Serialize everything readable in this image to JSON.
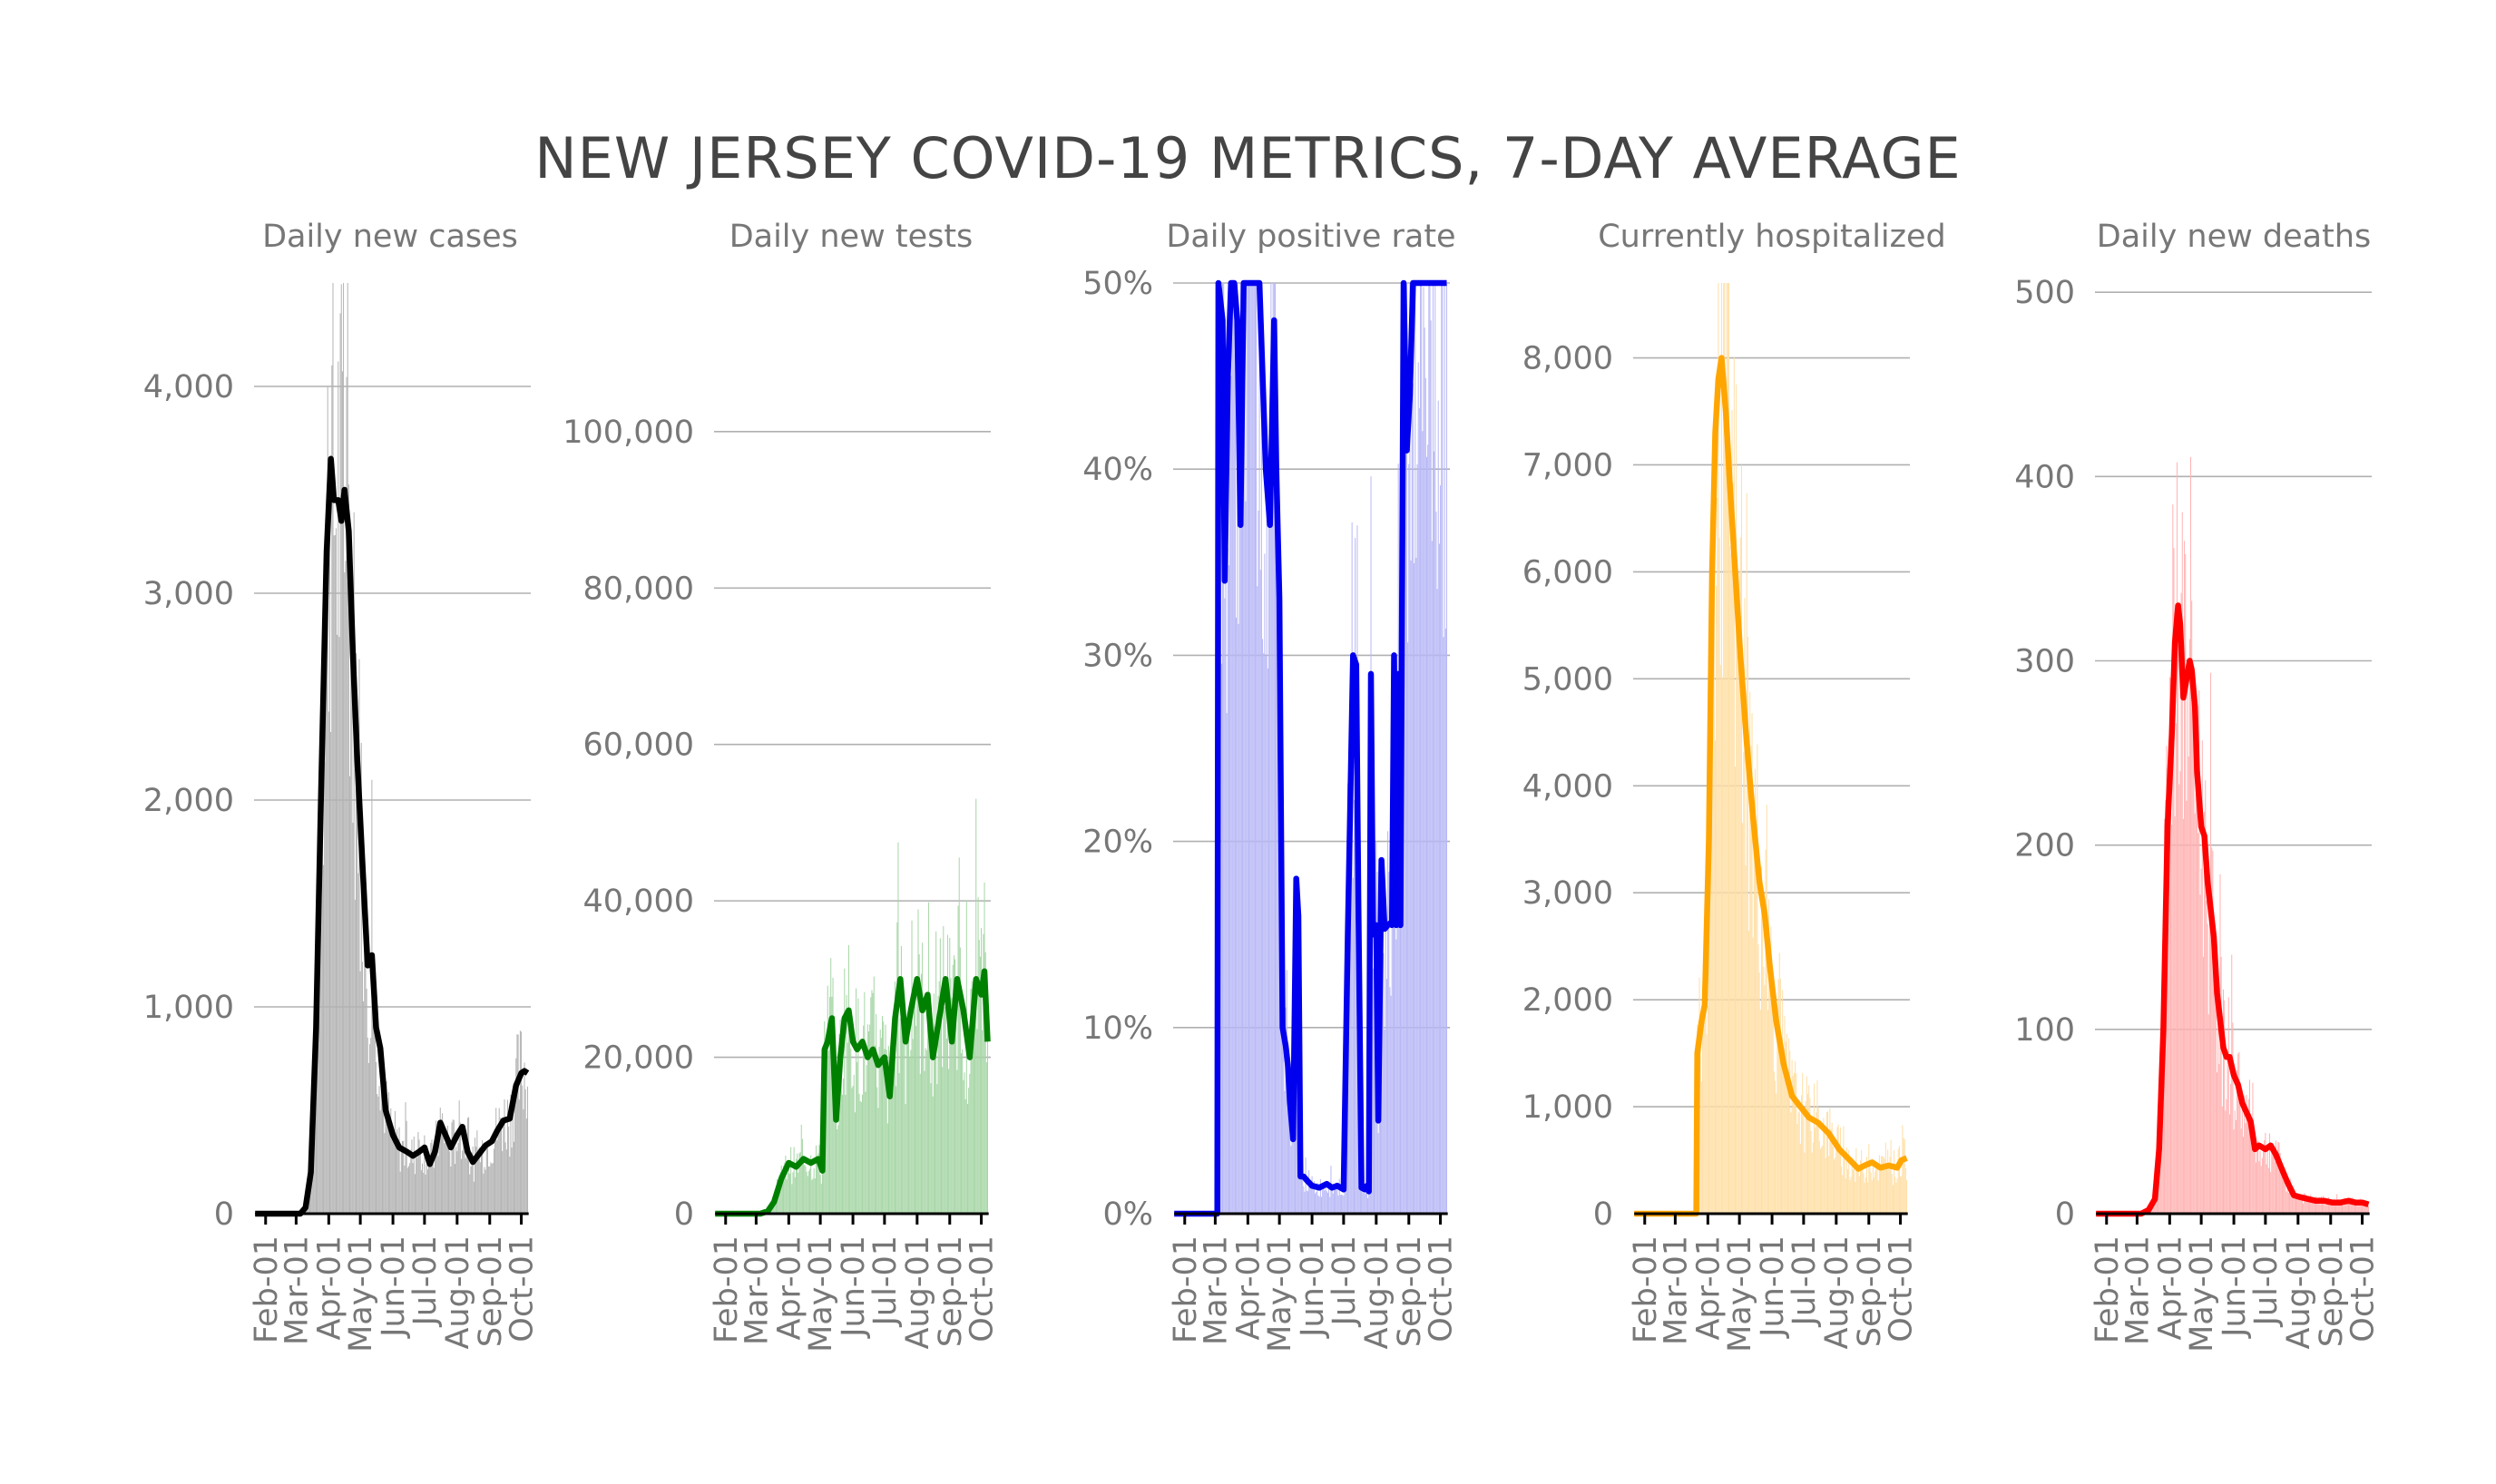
{
  "title": "NEW JERSEY COVID-19 METRICS, 7-DAY AVERAGE",
  "x_tick_labels": [
    "Feb-01",
    "Mar-01",
    "Apr-01",
    "May-01",
    "Jun-01",
    "Jul-01",
    "Aug-01",
    "Sep-01",
    "Oct-01"
  ],
  "chart_data": [
    {
      "type": "bar",
      "title": "Daily new cases",
      "color": "#000000",
      "bar_color": "#b3b3b3",
      "ylim": [
        0,
        4500
      ],
      "yticks": [
        0,
        1000,
        2000,
        3000,
        4000
      ],
      "ytick_labels": [
        "0",
        "1,000",
        "2,000",
        "3,000",
        "4,000"
      ],
      "xlim": [
        "2020-01-21",
        "2020-10-10"
      ],
      "series": [
        {
          "type": "line",
          "x": [
            "2020-01-22",
            "2020-02-15",
            "2020-03-05",
            "2020-03-10",
            "2020-03-15",
            "2020-03-20",
            "2020-03-25",
            "2020-03-30",
            "2020-04-03",
            "2020-04-06",
            "2020-04-10",
            "2020-04-13",
            "2020-04-16",
            "2020-04-20",
            "2020-04-24",
            "2020-04-28",
            "2020-05-03",
            "2020-05-08",
            "2020-05-12",
            "2020-05-16",
            "2020-05-20",
            "2020-05-25",
            "2020-06-01",
            "2020-06-07",
            "2020-06-14",
            "2020-06-20",
            "2020-06-26",
            "2020-07-01",
            "2020-07-06",
            "2020-07-11",
            "2020-07-16",
            "2020-07-21",
            "2020-07-26",
            "2020-08-01",
            "2020-08-06",
            "2020-08-11",
            "2020-08-16",
            "2020-08-22",
            "2020-08-28",
            "2020-09-03",
            "2020-09-08",
            "2020-09-14",
            "2020-09-20",
            "2020-09-26",
            "2020-10-01",
            "2020-10-04",
            "2020-10-07"
          ],
          "y": [
            0,
            0,
            0,
            30,
            200,
            900,
            2100,
            3200,
            3650,
            3450,
            3450,
            3350,
            3500,
            3300,
            2700,
            2200,
            1700,
            1200,
            1250,
            900,
            800,
            500,
            380,
            320,
            300,
            280,
            300,
            320,
            240,
            300,
            440,
            380,
            320,
            380,
            420,
            300,
            250,
            290,
            330,
            350,
            400,
            450,
            460,
            620,
            680,
            690,
            680
          ]
        }
      ]
    },
    {
      "type": "bar",
      "title": "Daily new tests",
      "color": "#008000",
      "bar_color": "#a6d6a6",
      "ylim": [
        0,
        119000
      ],
      "yticks": [
        0,
        20000,
        40000,
        60000,
        80000,
        100000
      ],
      "ytick_labels": [
        "0",
        "20,000",
        "40,000",
        "60,000",
        "80,000",
        "100,000"
      ],
      "xlim": [
        "2020-01-21",
        "2020-10-10"
      ],
      "series": [
        {
          "type": "line",
          "x": [
            "2020-01-22",
            "2020-03-05",
            "2020-03-12",
            "2020-03-18",
            "2020-03-25",
            "2020-04-01",
            "2020-04-08",
            "2020-04-15",
            "2020-04-22",
            "2020-04-29",
            "2020-05-03",
            "2020-05-05",
            "2020-05-08",
            "2020-05-12",
            "2020-05-16",
            "2020-05-20",
            "2020-05-24",
            "2020-05-28",
            "2020-06-01",
            "2020-06-05",
            "2020-06-10",
            "2020-06-15",
            "2020-06-20",
            "2020-06-25",
            "2020-07-01",
            "2020-07-06",
            "2020-07-11",
            "2020-07-16",
            "2020-07-21",
            "2020-07-26",
            "2020-08-01",
            "2020-08-06",
            "2020-08-11",
            "2020-08-16",
            "2020-08-22",
            "2020-08-28",
            "2020-09-03",
            "2020-09-08",
            "2020-09-14",
            "2020-09-20",
            "2020-09-26",
            "2020-10-01",
            "2020-10-04",
            "2020-10-07"
          ],
          "y": [
            0,
            0,
            300,
            1500,
            4500,
            6500,
            6000,
            7000,
            6500,
            7000,
            5500,
            21000,
            22000,
            25000,
            12000,
            20000,
            25000,
            26000,
            22000,
            21000,
            22000,
            20000,
            21000,
            19000,
            20000,
            15000,
            25000,
            30000,
            22000,
            26000,
            30000,
            26000,
            28000,
            20000,
            25000,
            30000,
            22000,
            30000,
            26000,
            20000,
            30000,
            28000,
            31000,
            22000
          ]
        }
      ]
    },
    {
      "type": "bar",
      "title": "Daily positive rate",
      "color": "#0000ee",
      "bar_color": "#b8b8f6",
      "ylim": [
        0,
        50
      ],
      "yticks": [
        0,
        10,
        20,
        30,
        40,
        50
      ],
      "ytick_labels": [
        "0%",
        "10%",
        "20%",
        "30%",
        "40%",
        "50%"
      ],
      "xlim": [
        "2020-01-21",
        "2020-10-10"
      ],
      "series": [
        {
          "type": "line",
          "x": [
            "2020-01-22",
            "2020-03-03",
            "2020-03-04",
            "2020-03-08",
            "2020-03-10",
            "2020-03-13",
            "2020-03-16",
            "2020-03-19",
            "2020-03-22",
            "2020-03-25",
            "2020-03-28",
            "2020-04-03",
            "2020-04-08",
            "2020-04-12",
            "2020-04-15",
            "2020-04-18",
            "2020-04-22",
            "2020-04-26",
            "2020-04-28",
            "2020-05-01",
            "2020-05-04",
            "2020-05-07",
            "2020-05-09",
            "2020-05-11",
            "2020-05-14",
            "2020-05-17",
            "2020-05-19",
            "2020-05-21",
            "2020-05-24",
            "2020-05-27",
            "2020-06-01",
            "2020-06-08",
            "2020-06-15",
            "2020-06-20",
            "2020-06-25",
            "2020-07-01",
            "2020-07-05",
            "2020-07-10",
            "2020-07-13",
            "2020-07-15",
            "2020-07-18",
            "2020-07-21",
            "2020-07-23",
            "2020-07-25",
            "2020-07-27",
            "2020-07-29",
            "2020-08-01",
            "2020-08-03",
            "2020-08-06",
            "2020-08-09",
            "2020-08-12",
            "2020-08-14",
            "2020-08-16",
            "2020-08-18",
            "2020-08-20",
            "2020-08-22",
            "2020-08-24",
            "2020-08-27",
            "2020-08-30",
            "2020-09-02",
            "2020-09-05",
            "2020-09-08",
            "2020-09-11",
            "2020-09-14",
            "2020-09-16",
            "2020-09-18",
            "2020-09-20",
            "2020-09-22",
            "2020-09-24",
            "2020-09-26",
            "2020-09-28",
            "2020-09-30",
            "2020-10-01",
            "2020-10-03",
            "2020-10-05",
            "2020-10-07"
          ],
          "y": [
            0,
            0,
            50,
            48,
            34,
            45,
            55,
            60,
            48,
            37,
            52,
            58,
            53,
            50,
            45,
            40,
            37,
            48,
            40,
            33,
            10,
            9,
            8,
            6,
            4,
            18,
            16,
            2,
            2,
            1.8,
            1.5,
            1.4,
            1.6,
            1.4,
            1.5,
            1.3,
            15,
            30,
            29.5,
            17,
            1.4,
            1.3,
            1.5,
            1.2,
            29,
            15,
            15.5,
            5,
            19,
            15.3,
            15.5,
            15.6,
            15.5,
            30,
            15.5,
            29,
            15.5,
            50,
            41,
            44,
            50,
            50,
            50,
            50,
            50,
            50,
            50,
            50,
            50,
            50,
            50,
            50,
            50,
            50,
            50,
            50
          ]
        }
      ]
    },
    {
      "type": "bar",
      "title": "Currently hospitalized",
      "color": "#ffa500",
      "bar_color": "#ffdfa6",
      "ylim": [
        0,
        8700
      ],
      "yticks": [
        0,
        1000,
        2000,
        3000,
        4000,
        5000,
        6000,
        7000,
        8000
      ],
      "ytick_labels": [
        "0",
        "1,000",
        "2,000",
        "3,000",
        "4,000",
        "5,000",
        "6,000",
        "7,000",
        "8,000"
      ],
      "xlim": [
        "2020-01-21",
        "2020-10-10"
      ],
      "series": [
        {
          "type": "line",
          "x": [
            "2020-01-22",
            "2020-03-10",
            "2020-03-21",
            "2020-03-22",
            "2020-03-26",
            "2020-03-29",
            "2020-04-02",
            "2020-04-05",
            "2020-04-08",
            "2020-04-11",
            "2020-04-14",
            "2020-04-18",
            "2020-04-22",
            "2020-04-27",
            "2020-05-02",
            "2020-05-08",
            "2020-05-14",
            "2020-05-20",
            "2020-05-25",
            "2020-05-30",
            "2020-06-05",
            "2020-06-12",
            "2020-06-20",
            "2020-06-28",
            "2020-07-06",
            "2020-07-15",
            "2020-07-25",
            "2020-08-04",
            "2020-08-14",
            "2020-08-22",
            "2020-08-28",
            "2020-09-04",
            "2020-09-12",
            "2020-09-20",
            "2020-09-28",
            "2020-10-02",
            "2020-10-07"
          ],
          "y": [
            0,
            0,
            0,
            1500,
            1800,
            1950,
            3500,
            6000,
            7300,
            7800,
            8000,
            7500,
            6800,
            6000,
            5200,
            4400,
            3700,
            3100,
            2800,
            2300,
            1800,
            1400,
            1100,
            1000,
            900,
            850,
            750,
            600,
            500,
            420,
            450,
            480,
            430,
            450,
            430,
            500,
            520
          ]
        }
      ]
    },
    {
      "type": "bar",
      "title": "Daily new deaths",
      "color": "#ff0000",
      "bar_color": "#ffb3b3",
      "ylim": [
        0,
        505
      ],
      "yticks": [
        0,
        100,
        200,
        300,
        400,
        500
      ],
      "ytick_labels": [
        "0",
        "100",
        "200",
        "300",
        "400",
        "500"
      ],
      "xlim": [
        "2020-01-21",
        "2020-10-10"
      ],
      "series": [
        {
          "type": "line",
          "x": [
            "2020-01-22",
            "2020-03-05",
            "2020-03-12",
            "2020-03-18",
            "2020-03-22",
            "2020-03-26",
            "2020-03-30",
            "2020-04-03",
            "2020-04-06",
            "2020-04-09",
            "2020-04-11",
            "2020-04-14",
            "2020-04-17",
            "2020-04-20",
            "2020-04-22",
            "2020-04-25",
            "2020-04-27",
            "2020-05-01",
            "2020-05-04",
            "2020-05-07",
            "2020-05-10",
            "2020-05-13",
            "2020-05-16",
            "2020-05-19",
            "2020-05-22",
            "2020-05-25",
            "2020-05-28",
            "2020-06-01",
            "2020-06-05",
            "2020-06-09",
            "2020-06-13",
            "2020-06-17",
            "2020-06-21",
            "2020-06-25",
            "2020-07-01",
            "2020-07-06",
            "2020-07-11",
            "2020-07-16",
            "2020-07-22",
            "2020-07-28",
            "2020-08-03",
            "2020-08-10",
            "2020-08-18",
            "2020-08-26",
            "2020-09-03",
            "2020-09-10",
            "2020-09-18",
            "2020-09-25",
            "2020-10-01",
            "2020-10-07"
          ],
          "y": [
            0,
            0,
            2,
            8,
            35,
            100,
            210,
            260,
            310,
            330,
            320,
            280,
            290,
            300,
            295,
            275,
            240,
            210,
            205,
            180,
            165,
            150,
            120,
            105,
            90,
            85,
            85,
            75,
            70,
            60,
            55,
            50,
            35,
            37,
            35,
            37,
            32,
            25,
            17,
            10,
            9,
            8,
            7,
            7,
            6,
            6,
            7,
            6,
            6,
            5
          ]
        }
      ]
    }
  ]
}
